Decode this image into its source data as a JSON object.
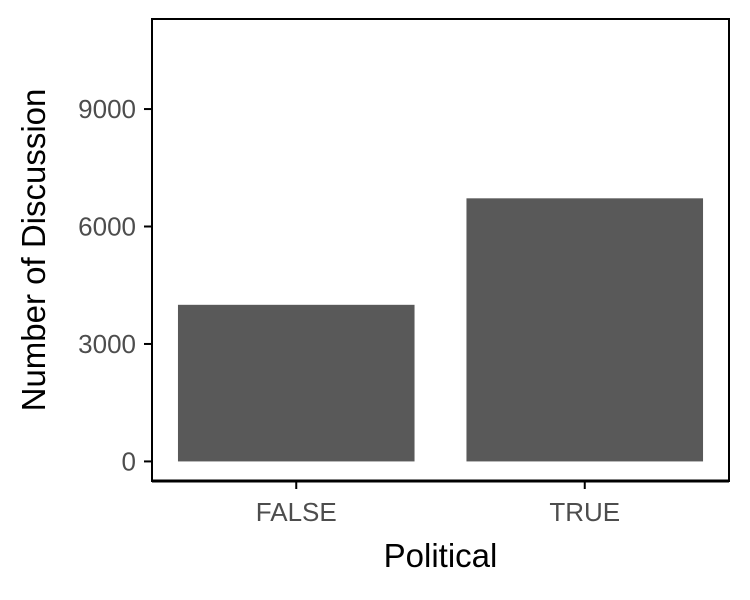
{
  "chart_data": {
    "type": "bar",
    "title": "",
    "xlabel": "Political",
    "ylabel": "Number of Discussion",
    "categories": [
      "FALSE",
      "TRUE"
    ],
    "values": [
      4000,
      6720
    ],
    "ylim": [
      -500,
      11300
    ],
    "yticks": [
      "0",
      "3000",
      "6000",
      "9000"
    ],
    "grid": false,
    "legend": "none",
    "bar_color": "#595959"
  }
}
